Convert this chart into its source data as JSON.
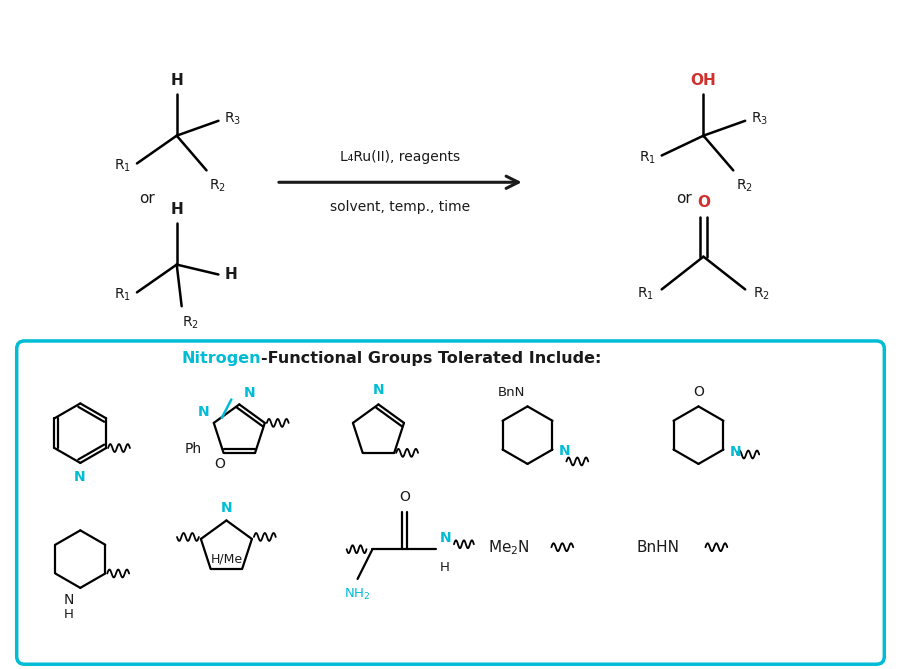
{
  "bg_color": "#ffffff",
  "cyan_color": "#00bcd4",
  "red_color": "#d0312d",
  "black_color": "#1a1a1a",
  "box_border_color": "#00bcd4",
  "reagent_line1": "L₄Ru(II), reagents",
  "reagent_line2": "solvent, temp., time",
  "box_title_cyan": "Nitrogen",
  "box_title_black": "-Functional Groups Tolerated Include:"
}
